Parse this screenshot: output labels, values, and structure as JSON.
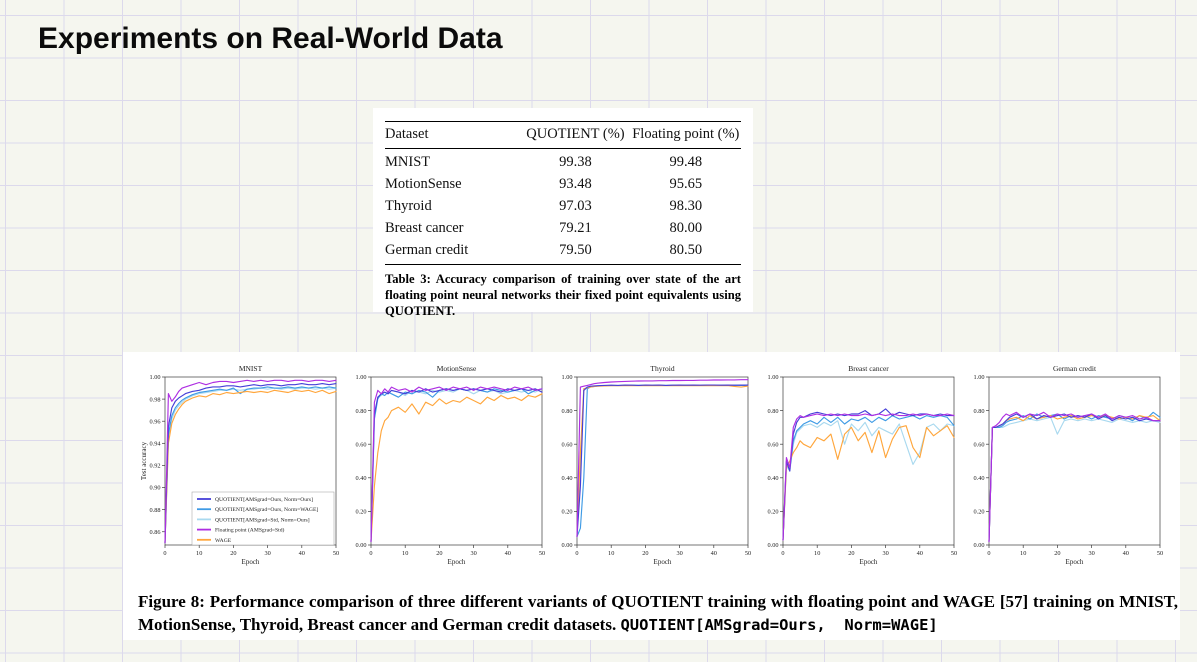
{
  "slide": {
    "title": "Experiments on Real-World Data"
  },
  "table": {
    "columns": [
      "Dataset",
      "QUOTIENT (%)",
      "Floating point (%)"
    ],
    "rows": [
      [
        "MNIST",
        "99.38",
        "99.48"
      ],
      [
        "MotionSense",
        "93.48",
        "95.65"
      ],
      [
        "Thyroid",
        "97.03",
        "98.30"
      ],
      [
        "Breast cancer",
        "79.21",
        "80.00"
      ],
      [
        "German credit",
        "79.50",
        "80.50"
      ]
    ],
    "caption": "Table 3: Accuracy comparison of training over state of the art floating point neural networks their fixed point equivalents using QUOTIENT."
  },
  "figure": {
    "caption_serif": "Figure 8: Performance comparison of three different variants of QUOTIENT training with floating point and WAGE [57] training on MNIST, MotionSense, Thyroid, Breast cancer and German credit datasets. ",
    "caption_mono": "QUOTIENT[AMSgrad=Ours,  Norm=WAGE]",
    "legend_entries": [
      {
        "label": "QUOTIENT[AMSgrad=Ours, Norm=Ours]",
        "color": "#453fd8"
      },
      {
        "label": "QUOTIENT[AMSgrad=Ours, Norm=WAGE]",
        "color": "#3f9be5"
      },
      {
        "label": "QUOTIENT[AMSgrad=Std, Norm=Ours]",
        "color": "#a9d9ef"
      },
      {
        "label": "Floating point (AMSgrad=Std)",
        "color": "#ae2ee2"
      },
      {
        "label": "WAGE",
        "color": "#ffa63c"
      }
    ]
  },
  "chart_data": [
    {
      "type": "line",
      "title": "MNIST",
      "xlabel": "Epoch",
      "ylabel": "Test accuracy",
      "xlim": [
        0,
        50
      ],
      "ylim": [
        0.848,
        1.0
      ],
      "xticks": [
        0,
        10,
        20,
        30,
        40,
        50
      ],
      "yticks": [
        "0.86",
        "0.88",
        "0.90",
        "0.92",
        "0.94",
        "0.96",
        "0.98",
        "1.00"
      ],
      "show_legend": true,
      "x": [
        0,
        1,
        2,
        3,
        4,
        5,
        6,
        8,
        10,
        12,
        14,
        16,
        18,
        20,
        22,
        24,
        26,
        28,
        30,
        32,
        34,
        36,
        38,
        40,
        42,
        44,
        46,
        48,
        50
      ],
      "series": [
        [
          0.85,
          0.955,
          0.972,
          0.978,
          0.981,
          0.983,
          0.985,
          0.987,
          0.988,
          0.99,
          0.991,
          0.991,
          0.992,
          0.992,
          0.991,
          0.992,
          0.993,
          0.992,
          0.993,
          0.993,
          0.992,
          0.993,
          0.993,
          0.994,
          0.993,
          0.993,
          0.994,
          0.993,
          0.994
        ],
        [
          0.85,
          0.948,
          0.965,
          0.972,
          0.976,
          0.979,
          0.981,
          0.984,
          0.986,
          0.987,
          0.988,
          0.989,
          0.988,
          0.99,
          0.985,
          0.989,
          0.99,
          0.99,
          0.991,
          0.99,
          0.99,
          0.991,
          0.99,
          0.991,
          0.99,
          0.991,
          0.99,
          0.991,
          0.99
        ],
        [
          0.85,
          0.945,
          0.962,
          0.97,
          0.974,
          0.977,
          0.98,
          0.983,
          0.985,
          0.986,
          0.987,
          0.988,
          0.988,
          0.989,
          0.988,
          0.989,
          0.989,
          0.99,
          0.989,
          0.99,
          0.989,
          0.99,
          0.989,
          0.99,
          0.99,
          0.989,
          0.99,
          0.989,
          0.99
        ],
        [
          0.85,
          0.985,
          0.978,
          0.982,
          0.987,
          0.99,
          0.991,
          0.993,
          0.995,
          0.993,
          0.995,
          0.996,
          0.996,
          0.995,
          0.996,
          0.997,
          0.996,
          0.997,
          0.996,
          0.997,
          0.997,
          0.996,
          0.997,
          0.997,
          0.996,
          0.997,
          0.997,
          0.996,
          0.997
        ],
        [
          0.85,
          0.94,
          0.958,
          0.966,
          0.971,
          0.975,
          0.978,
          0.981,
          0.983,
          0.982,
          0.985,
          0.984,
          0.986,
          0.985,
          0.986,
          0.987,
          0.986,
          0.987,
          0.986,
          0.988,
          0.987,
          0.986,
          0.988,
          0.987,
          0.988,
          0.986,
          0.988,
          0.985,
          0.987
        ]
      ]
    },
    {
      "type": "line",
      "title": "MotionSense",
      "xlabel": "Epoch",
      "ylabel": "",
      "xlim": [
        0,
        50
      ],
      "ylim": [
        0,
        1
      ],
      "xticks": [
        0,
        10,
        20,
        30,
        40,
        50
      ],
      "yticks": [
        "0.00",
        "0.20",
        "0.40",
        "0.60",
        "0.80",
        "1.00"
      ],
      "show_legend": false,
      "x": [
        0,
        1,
        2,
        3,
        4,
        5,
        6,
        8,
        10,
        12,
        14,
        16,
        18,
        20,
        22,
        24,
        26,
        28,
        30,
        32,
        34,
        36,
        38,
        40,
        42,
        44,
        46,
        48,
        50
      ],
      "series": [
        [
          0.02,
          0.78,
          0.88,
          0.9,
          0.91,
          0.9,
          0.92,
          0.91,
          0.9,
          0.92,
          0.91,
          0.93,
          0.91,
          0.92,
          0.93,
          0.92,
          0.93,
          0.92,
          0.93,
          0.92,
          0.93,
          0.92,
          0.91,
          0.93,
          0.92,
          0.93,
          0.92,
          0.93,
          0.91
        ],
        [
          0.02,
          0.75,
          0.87,
          0.9,
          0.89,
          0.91,
          0.9,
          0.88,
          0.91,
          0.9,
          0.92,
          0.91,
          0.88,
          0.92,
          0.93,
          0.92,
          0.93,
          0.92,
          0.93,
          0.92,
          0.91,
          0.93,
          0.92,
          0.91,
          0.92,
          0.93,
          0.9,
          0.92,
          0.93
        ],
        [
          0.02,
          0.76,
          0.88,
          0.89,
          0.91,
          0.9,
          0.92,
          0.91,
          0.89,
          0.92,
          0.91,
          0.9,
          0.92,
          0.91,
          0.92,
          0.91,
          0.93,
          0.92,
          0.9,
          0.92,
          0.91,
          0.92,
          0.9,
          0.91,
          0.92,
          0.91,
          0.92,
          0.91,
          0.93
        ],
        [
          0.02,
          0.85,
          0.92,
          0.9,
          0.93,
          0.91,
          0.94,
          0.92,
          0.93,
          0.91,
          0.94,
          0.92,
          0.93,
          0.94,
          0.92,
          0.94,
          0.93,
          0.94,
          0.92,
          0.94,
          0.93,
          0.94,
          0.93,
          0.92,
          0.94,
          0.93,
          0.94,
          0.92,
          0.93
        ],
        [
          0.02,
          0.35,
          0.55,
          0.68,
          0.74,
          0.76,
          0.8,
          0.82,
          0.79,
          0.84,
          0.78,
          0.85,
          0.83,
          0.87,
          0.84,
          0.86,
          0.85,
          0.88,
          0.86,
          0.84,
          0.88,
          0.86,
          0.89,
          0.87,
          0.88,
          0.86,
          0.89,
          0.88,
          0.9
        ]
      ]
    },
    {
      "type": "line",
      "title": "Thyroid",
      "xlabel": "Epoch",
      "ylabel": "",
      "xlim": [
        0,
        50
      ],
      "ylim": [
        0,
        1
      ],
      "xticks": [
        0,
        10,
        20,
        30,
        40,
        50
      ],
      "yticks": [
        "0.00",
        "0.20",
        "0.40",
        "0.60",
        "0.80",
        "1.00"
      ],
      "show_legend": false,
      "x": [
        0,
        1,
        2,
        3,
        4,
        5,
        6,
        8,
        10,
        12,
        14,
        16,
        18,
        20,
        22,
        24,
        26,
        28,
        30,
        32,
        34,
        36,
        38,
        40,
        42,
        44,
        46,
        48,
        50
      ],
      "series": [
        [
          0.05,
          0.35,
          0.92,
          0.94,
          0.945,
          0.947,
          0.948,
          0.95,
          0.951,
          0.95,
          0.952,
          0.951,
          0.95,
          0.952,
          0.951,
          0.952,
          0.95,
          0.951,
          0.952,
          0.951,
          0.952,
          0.951,
          0.952,
          0.952,
          0.951,
          0.952,
          0.951,
          0.952,
          0.952
        ],
        [
          0.05,
          0.1,
          0.4,
          0.93,
          0.941,
          0.944,
          0.946,
          0.948,
          0.95,
          0.949,
          0.95,
          0.951,
          0.95,
          0.951,
          0.95,
          0.951,
          0.95,
          0.951,
          0.95,
          0.951,
          0.95,
          0.95,
          0.951,
          0.95,
          0.951,
          0.95,
          0.951,
          0.95,
          0.95
        ],
        [
          0.05,
          0.45,
          0.93,
          0.938,
          0.943,
          0.946,
          0.947,
          0.949,
          0.95,
          0.95,
          0.951,
          0.95,
          0.951,
          0.95,
          0.95,
          0.951,
          0.95,
          0.951,
          0.95,
          0.95,
          0.951,
          0.95,
          0.951,
          0.95,
          0.95,
          0.951,
          0.95,
          0.951,
          0.95
        ],
        [
          0.05,
          0.94,
          0.945,
          0.95,
          0.955,
          0.96,
          0.963,
          0.967,
          0.97,
          0.972,
          0.974,
          0.975,
          0.976,
          0.977,
          0.977,
          0.978,
          0.978,
          0.979,
          0.979,
          0.98,
          0.98,
          0.981,
          0.981,
          0.982,
          0.982,
          0.983,
          0.983,
          0.984,
          0.984
        ],
        [
          0.05,
          0.55,
          0.93,
          0.936,
          0.94,
          0.943,
          0.945,
          0.947,
          0.948,
          0.948,
          0.949,
          0.948,
          0.949,
          0.948,
          0.949,
          0.948,
          0.949,
          0.948,
          0.948,
          0.949,
          0.948,
          0.949,
          0.948,
          0.949,
          0.948,
          0.949,
          0.944,
          0.94,
          0.946
        ]
      ]
    },
    {
      "type": "line",
      "title": "Breast cancer",
      "xlabel": "Epoch",
      "ylabel": "",
      "xlim": [
        0,
        50
      ],
      "ylim": [
        0,
        1
      ],
      "xticks": [
        0,
        10,
        20,
        30,
        40,
        50
      ],
      "yticks": [
        "0.00",
        "0.20",
        "0.40",
        "0.60",
        "0.80",
        "1.00"
      ],
      "show_legend": false,
      "x": [
        0,
        1,
        2,
        3,
        4,
        5,
        6,
        8,
        10,
        12,
        14,
        16,
        18,
        20,
        22,
        24,
        26,
        28,
        30,
        32,
        34,
        36,
        38,
        40,
        42,
        44,
        46,
        48,
        50
      ],
      "series": [
        [
          0.03,
          0.5,
          0.44,
          0.66,
          0.73,
          0.76,
          0.76,
          0.78,
          0.79,
          0.78,
          0.77,
          0.78,
          0.77,
          0.78,
          0.78,
          0.8,
          0.77,
          0.78,
          0.81,
          0.77,
          0.79,
          0.78,
          0.77,
          0.78,
          0.78,
          0.77,
          0.78,
          0.77,
          0.77
        ],
        [
          0.03,
          0.48,
          0.45,
          0.62,
          0.68,
          0.7,
          0.72,
          0.74,
          0.72,
          0.76,
          0.73,
          0.76,
          0.72,
          0.75,
          0.74,
          0.76,
          0.73,
          0.76,
          0.74,
          0.77,
          0.75,
          0.76,
          0.77,
          0.75,
          0.77,
          0.76,
          0.77,
          0.76,
          0.71
        ],
        [
          0.03,
          0.47,
          0.44,
          0.6,
          0.67,
          0.69,
          0.71,
          0.72,
          0.7,
          0.73,
          0.71,
          0.74,
          0.6,
          0.72,
          0.68,
          0.73,
          0.65,
          0.7,
          0.68,
          0.66,
          0.72,
          0.6,
          0.48,
          0.55,
          0.7,
          0.72,
          0.68,
          0.72,
          0.71
        ],
        [
          0.03,
          0.52,
          0.46,
          0.7,
          0.75,
          0.77,
          0.76,
          0.77,
          0.78,
          0.77,
          0.78,
          0.77,
          0.78,
          0.77,
          0.77,
          0.78,
          0.77,
          0.78,
          0.77,
          0.78,
          0.77,
          0.77,
          0.78,
          0.77,
          0.78,
          0.77,
          0.77,
          0.78,
          0.77
        ],
        [
          0.03,
          0.46,
          0.5,
          0.55,
          0.58,
          0.62,
          0.6,
          0.58,
          0.64,
          0.62,
          0.66,
          0.51,
          0.66,
          0.7,
          0.62,
          0.67,
          0.55,
          0.68,
          0.52,
          0.63,
          0.7,
          0.71,
          0.58,
          0.52,
          0.7,
          0.65,
          0.68,
          0.71,
          0.64
        ]
      ]
    },
    {
      "type": "line",
      "title": "German credit",
      "xlabel": "Epoch",
      "ylabel": "",
      "xlim": [
        0,
        50
      ],
      "ylim": [
        0,
        1
      ],
      "xticks": [
        0,
        10,
        20,
        30,
        40,
        50
      ],
      "yticks": [
        "0.00",
        "0.20",
        "0.40",
        "0.60",
        "0.80",
        "1.00"
      ],
      "show_legend": false,
      "x": [
        0,
        1,
        2,
        3,
        4,
        5,
        6,
        8,
        10,
        12,
        14,
        16,
        18,
        20,
        22,
        24,
        26,
        28,
        30,
        32,
        34,
        36,
        38,
        40,
        42,
        44,
        46,
        48,
        50
      ],
      "series": [
        [
          0.02,
          0.7,
          0.7,
          0.71,
          0.72,
          0.74,
          0.76,
          0.78,
          0.76,
          0.78,
          0.75,
          0.77,
          0.76,
          0.77,
          0.78,
          0.76,
          0.77,
          0.76,
          0.78,
          0.75,
          0.77,
          0.74,
          0.76,
          0.75,
          0.76,
          0.74,
          0.75,
          0.74,
          0.74
        ],
        [
          0.02,
          0.7,
          0.7,
          0.7,
          0.71,
          0.73,
          0.74,
          0.75,
          0.77,
          0.75,
          0.78,
          0.76,
          0.77,
          0.78,
          0.75,
          0.77,
          0.76,
          0.77,
          0.75,
          0.77,
          0.76,
          0.75,
          0.77,
          0.76,
          0.74,
          0.77,
          0.75,
          0.79,
          0.76
        ],
        [
          0.02,
          0.7,
          0.7,
          0.7,
          0.7,
          0.71,
          0.72,
          0.73,
          0.74,
          0.75,
          0.74,
          0.75,
          0.76,
          0.66,
          0.74,
          0.75,
          0.74,
          0.75,
          0.74,
          0.75,
          0.74,
          0.73,
          0.75,
          0.74,
          0.73,
          0.74,
          0.73,
          0.74,
          0.73
        ],
        [
          0.02,
          0.7,
          0.71,
          0.73,
          0.76,
          0.78,
          0.77,
          0.79,
          0.76,
          0.78,
          0.77,
          0.79,
          0.76,
          0.78,
          0.77,
          0.78,
          0.76,
          0.77,
          0.78,
          0.76,
          0.78,
          0.75,
          0.77,
          0.76,
          0.77,
          0.75,
          0.76,
          0.74,
          0.74
        ],
        [
          0.02,
          0.7,
          0.7,
          0.71,
          0.72,
          0.74,
          0.75,
          0.76,
          0.74,
          0.77,
          0.75,
          0.76,
          0.77,
          0.75,
          0.76,
          0.77,
          0.75,
          0.76,
          0.77,
          0.76,
          0.77,
          0.76,
          0.75,
          0.76,
          0.75,
          0.77,
          0.76,
          0.77,
          0.74
        ]
      ]
    }
  ]
}
